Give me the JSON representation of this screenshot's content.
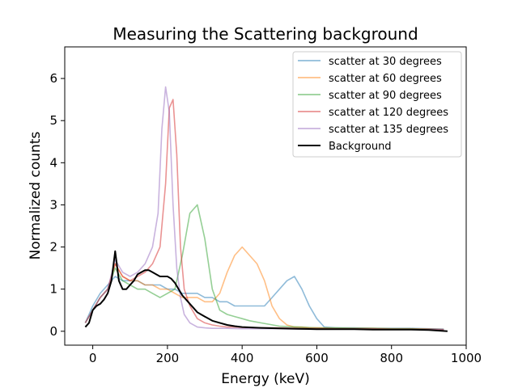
{
  "chart_data": {
    "type": "line",
    "title": "Measuring the Scattering background",
    "xlabel": "Energy (keV)",
    "ylabel": "Normalized counts",
    "xlim": [
      -75,
      1000
    ],
    "ylim": [
      -0.33,
      6.75
    ],
    "xticks": [
      0,
      200,
      400,
      600,
      800,
      1000
    ],
    "yticks": [
      0,
      1,
      2,
      3,
      4,
      5,
      6
    ],
    "grid": false,
    "legend_position": "top-right",
    "series": [
      {
        "name": "scatter at 30 degrees",
        "color": "#1f77b4",
        "alpha": 0.5,
        "x": [
          -20,
          0,
          20,
          40,
          60,
          80,
          100,
          120,
          140,
          160,
          180,
          200,
          220,
          240,
          260,
          280,
          300,
          320,
          340,
          360,
          380,
          400,
          420,
          440,
          460,
          480,
          500,
          520,
          540,
          560,
          580,
          600,
          620,
          650,
          700,
          750,
          800,
          850,
          900,
          940
        ],
        "y": [
          0.2,
          0.6,
          0.9,
          1.1,
          1.3,
          1.2,
          1.2,
          1.2,
          1.1,
          1.1,
          1.1,
          1.0,
          1.0,
          0.9,
          0.9,
          0.9,
          0.8,
          0.8,
          0.7,
          0.7,
          0.6,
          0.6,
          0.6,
          0.6,
          0.6,
          0.8,
          1.0,
          1.2,
          1.3,
          1.0,
          0.6,
          0.3,
          0.1,
          0.08,
          0.08,
          0.07,
          0.07,
          0.07,
          0.06,
          0.05
        ]
      },
      {
        "name": "scatter at 60 degrees",
        "color": "#ff7f0e",
        "alpha": 0.5,
        "x": [
          -20,
          0,
          20,
          40,
          60,
          80,
          100,
          120,
          140,
          160,
          180,
          200,
          220,
          240,
          260,
          280,
          300,
          320,
          340,
          360,
          380,
          400,
          420,
          440,
          460,
          480,
          500,
          520,
          540,
          560,
          580,
          600,
          650,
          700,
          750,
          800,
          850,
          900,
          940
        ],
        "y": [
          0.2,
          0.5,
          0.8,
          1.0,
          1.6,
          1.3,
          1.2,
          1.2,
          1.1,
          1.1,
          1.0,
          1.0,
          0.9,
          0.8,
          0.8,
          0.8,
          0.7,
          0.7,
          0.9,
          1.4,
          1.8,
          2.0,
          1.8,
          1.6,
          1.2,
          0.6,
          0.3,
          0.15,
          0.1,
          0.1,
          0.08,
          0.08,
          0.07,
          0.07,
          0.07,
          0.06,
          0.06,
          0.05,
          0.04
        ]
      },
      {
        "name": "scatter at 90 degrees",
        "color": "#2ca02c",
        "alpha": 0.5,
        "x": [
          -20,
          0,
          20,
          40,
          60,
          80,
          100,
          120,
          140,
          160,
          180,
          200,
          220,
          240,
          260,
          280,
          300,
          320,
          340,
          360,
          380,
          400,
          420,
          450,
          500,
          550,
          600,
          650,
          700,
          750,
          800,
          850,
          900,
          940
        ],
        "y": [
          0.2,
          0.5,
          0.8,
          1.0,
          1.5,
          1.2,
          1.1,
          1.0,
          1.0,
          0.9,
          0.8,
          0.9,
          1.0,
          1.8,
          2.8,
          3.0,
          2.2,
          1.0,
          0.5,
          0.4,
          0.35,
          0.3,
          0.25,
          0.2,
          0.12,
          0.1,
          0.08,
          0.08,
          0.07,
          0.07,
          0.06,
          0.06,
          0.05,
          0.04
        ]
      },
      {
        "name": "scatter at 120 degrees",
        "color": "#d62728",
        "alpha": 0.5,
        "x": [
          -20,
          0,
          20,
          40,
          60,
          80,
          100,
          120,
          140,
          160,
          180,
          195,
          205,
          215,
          225,
          235,
          245,
          260,
          280,
          300,
          320,
          340,
          360,
          380,
          400,
          450,
          500,
          550,
          600,
          650,
          700,
          750,
          800,
          850,
          900,
          940
        ],
        "y": [
          0.2,
          0.5,
          0.8,
          1.0,
          1.6,
          1.3,
          1.2,
          1.3,
          1.4,
          1.6,
          2.0,
          3.5,
          5.3,
          5.5,
          4.2,
          2.0,
          1.0,
          0.6,
          0.3,
          0.2,
          0.15,
          0.12,
          0.1,
          0.1,
          0.09,
          0.08,
          0.08,
          0.07,
          0.07,
          0.06,
          0.06,
          0.06,
          0.05,
          0.05,
          0.05,
          0.04
        ]
      },
      {
        "name": "scatter at 135 degrees",
        "color": "#9467bd",
        "alpha": 0.5,
        "x": [
          -20,
          0,
          20,
          40,
          60,
          80,
          100,
          120,
          140,
          160,
          175,
          185,
          195,
          205,
          215,
          225,
          235,
          245,
          260,
          280,
          300,
          320,
          340,
          360,
          400,
          450,
          500,
          550,
          600,
          650,
          700,
          750,
          800,
          850,
          900,
          940
        ],
        "y": [
          0.2,
          0.5,
          0.8,
          1.0,
          1.7,
          1.4,
          1.3,
          1.4,
          1.6,
          2.0,
          2.8,
          4.8,
          5.8,
          5.2,
          3.0,
          1.5,
          0.8,
          0.4,
          0.2,
          0.1,
          0.08,
          0.07,
          0.07,
          0.07,
          0.06,
          0.06,
          0.06,
          0.05,
          0.05,
          0.05,
          0.05,
          0.05,
          0.04,
          0.04,
          0.04,
          0.04
        ]
      },
      {
        "name": "Background",
        "color": "#000000",
        "alpha": 1.0,
        "x": [
          -20,
          -10,
          0,
          10,
          20,
          30,
          40,
          50,
          60,
          70,
          80,
          90,
          100,
          110,
          120,
          130,
          140,
          150,
          160,
          170,
          180,
          190,
          200,
          210,
          220,
          230,
          240,
          250,
          260,
          270,
          280,
          290,
          300,
          320,
          340,
          360,
          380,
          400,
          450,
          500,
          550,
          600,
          650,
          700,
          750,
          800,
          850,
          900,
          950
        ],
        "y": [
          0.1,
          0.2,
          0.5,
          0.6,
          0.65,
          0.75,
          0.9,
          1.2,
          1.9,
          1.2,
          1.0,
          1.0,
          1.1,
          1.2,
          1.35,
          1.4,
          1.45,
          1.45,
          1.4,
          1.35,
          1.3,
          1.3,
          1.3,
          1.25,
          1.15,
          1.0,
          0.85,
          0.75,
          0.65,
          0.55,
          0.45,
          0.4,
          0.35,
          0.25,
          0.2,
          0.15,
          0.12,
          0.1,
          0.08,
          0.07,
          0.06,
          0.05,
          0.05,
          0.05,
          0.04,
          0.04,
          0.04,
          0.03,
          0.0
        ]
      }
    ]
  }
}
